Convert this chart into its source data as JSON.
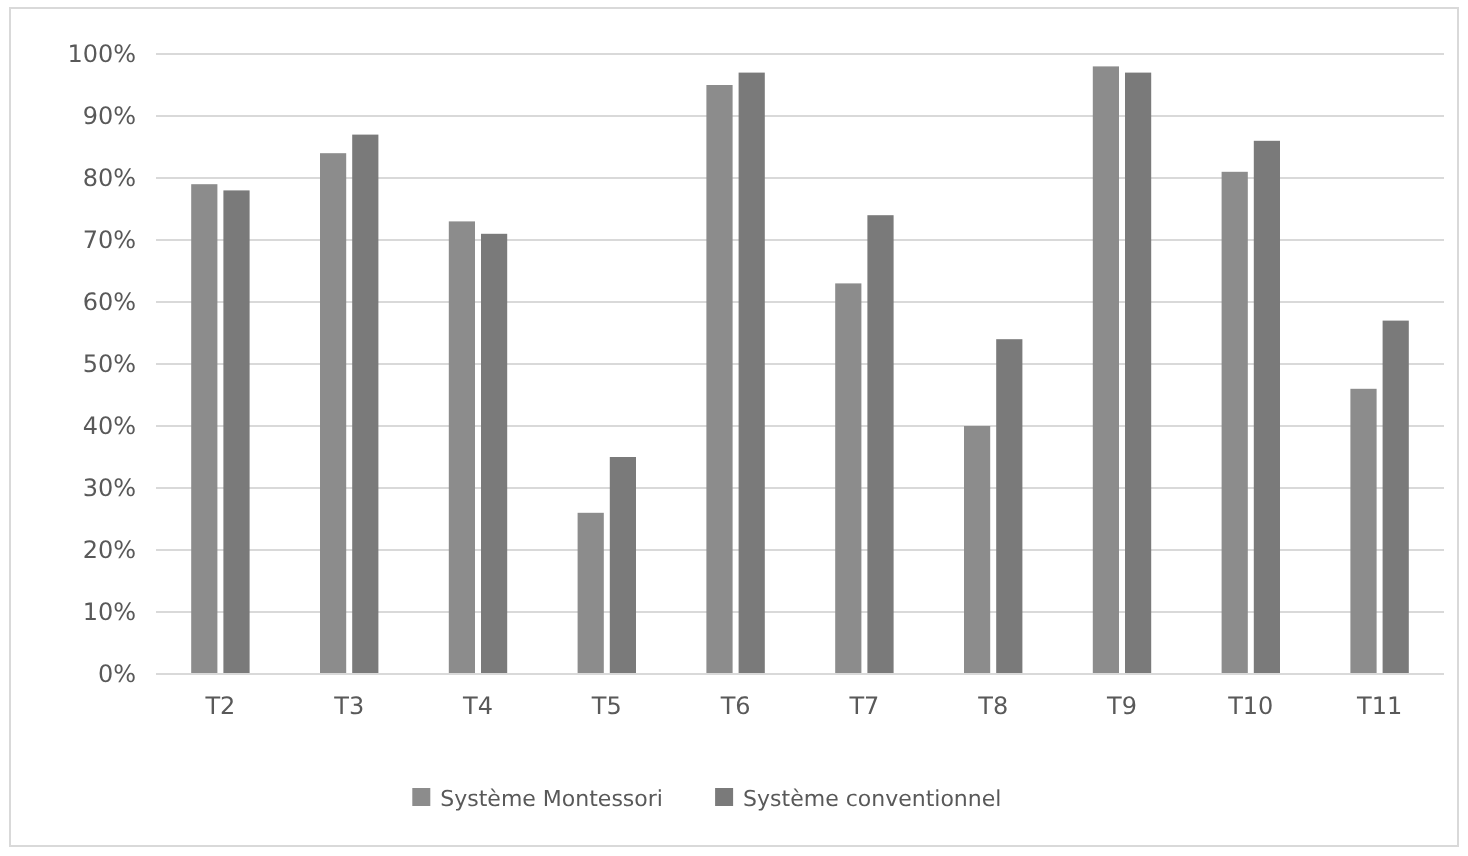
{
  "chart_data": {
    "type": "bar",
    "categories": [
      "T2",
      "T3",
      "T4",
      "T5",
      "T6",
      "T7",
      "T8",
      "T9",
      "T10",
      "T11"
    ],
    "series": [
      {
        "name": "Système Montessori",
        "color": "#8c8c8c",
        "values": [
          79,
          84,
          73,
          26,
          95,
          63,
          40,
          98,
          81,
          46
        ]
      },
      {
        "name": "Système conventionnel",
        "color": "#7a7a7a",
        "values": [
          78,
          87,
          71,
          35,
          97,
          74,
          54,
          97,
          86,
          57
        ]
      }
    ],
    "ylim": [
      0,
      100
    ],
    "yticks": [
      {
        "value": 0,
        "label": "0%"
      },
      {
        "value": 10,
        "label": "10%"
      },
      {
        "value": 20,
        "label": "20%"
      },
      {
        "value": 30,
        "label": "30%"
      },
      {
        "value": 40,
        "label": "40%"
      },
      {
        "value": 50,
        "label": "50%"
      },
      {
        "value": 60,
        "label": "60%"
      },
      {
        "value": 70,
        "label": "70%"
      },
      {
        "value": 80,
        "label": "80%"
      },
      {
        "value": 90,
        "label": "90%"
      },
      {
        "value": 100,
        "label": "100%"
      }
    ],
    "grid": "y",
    "legend": "bottom"
  }
}
